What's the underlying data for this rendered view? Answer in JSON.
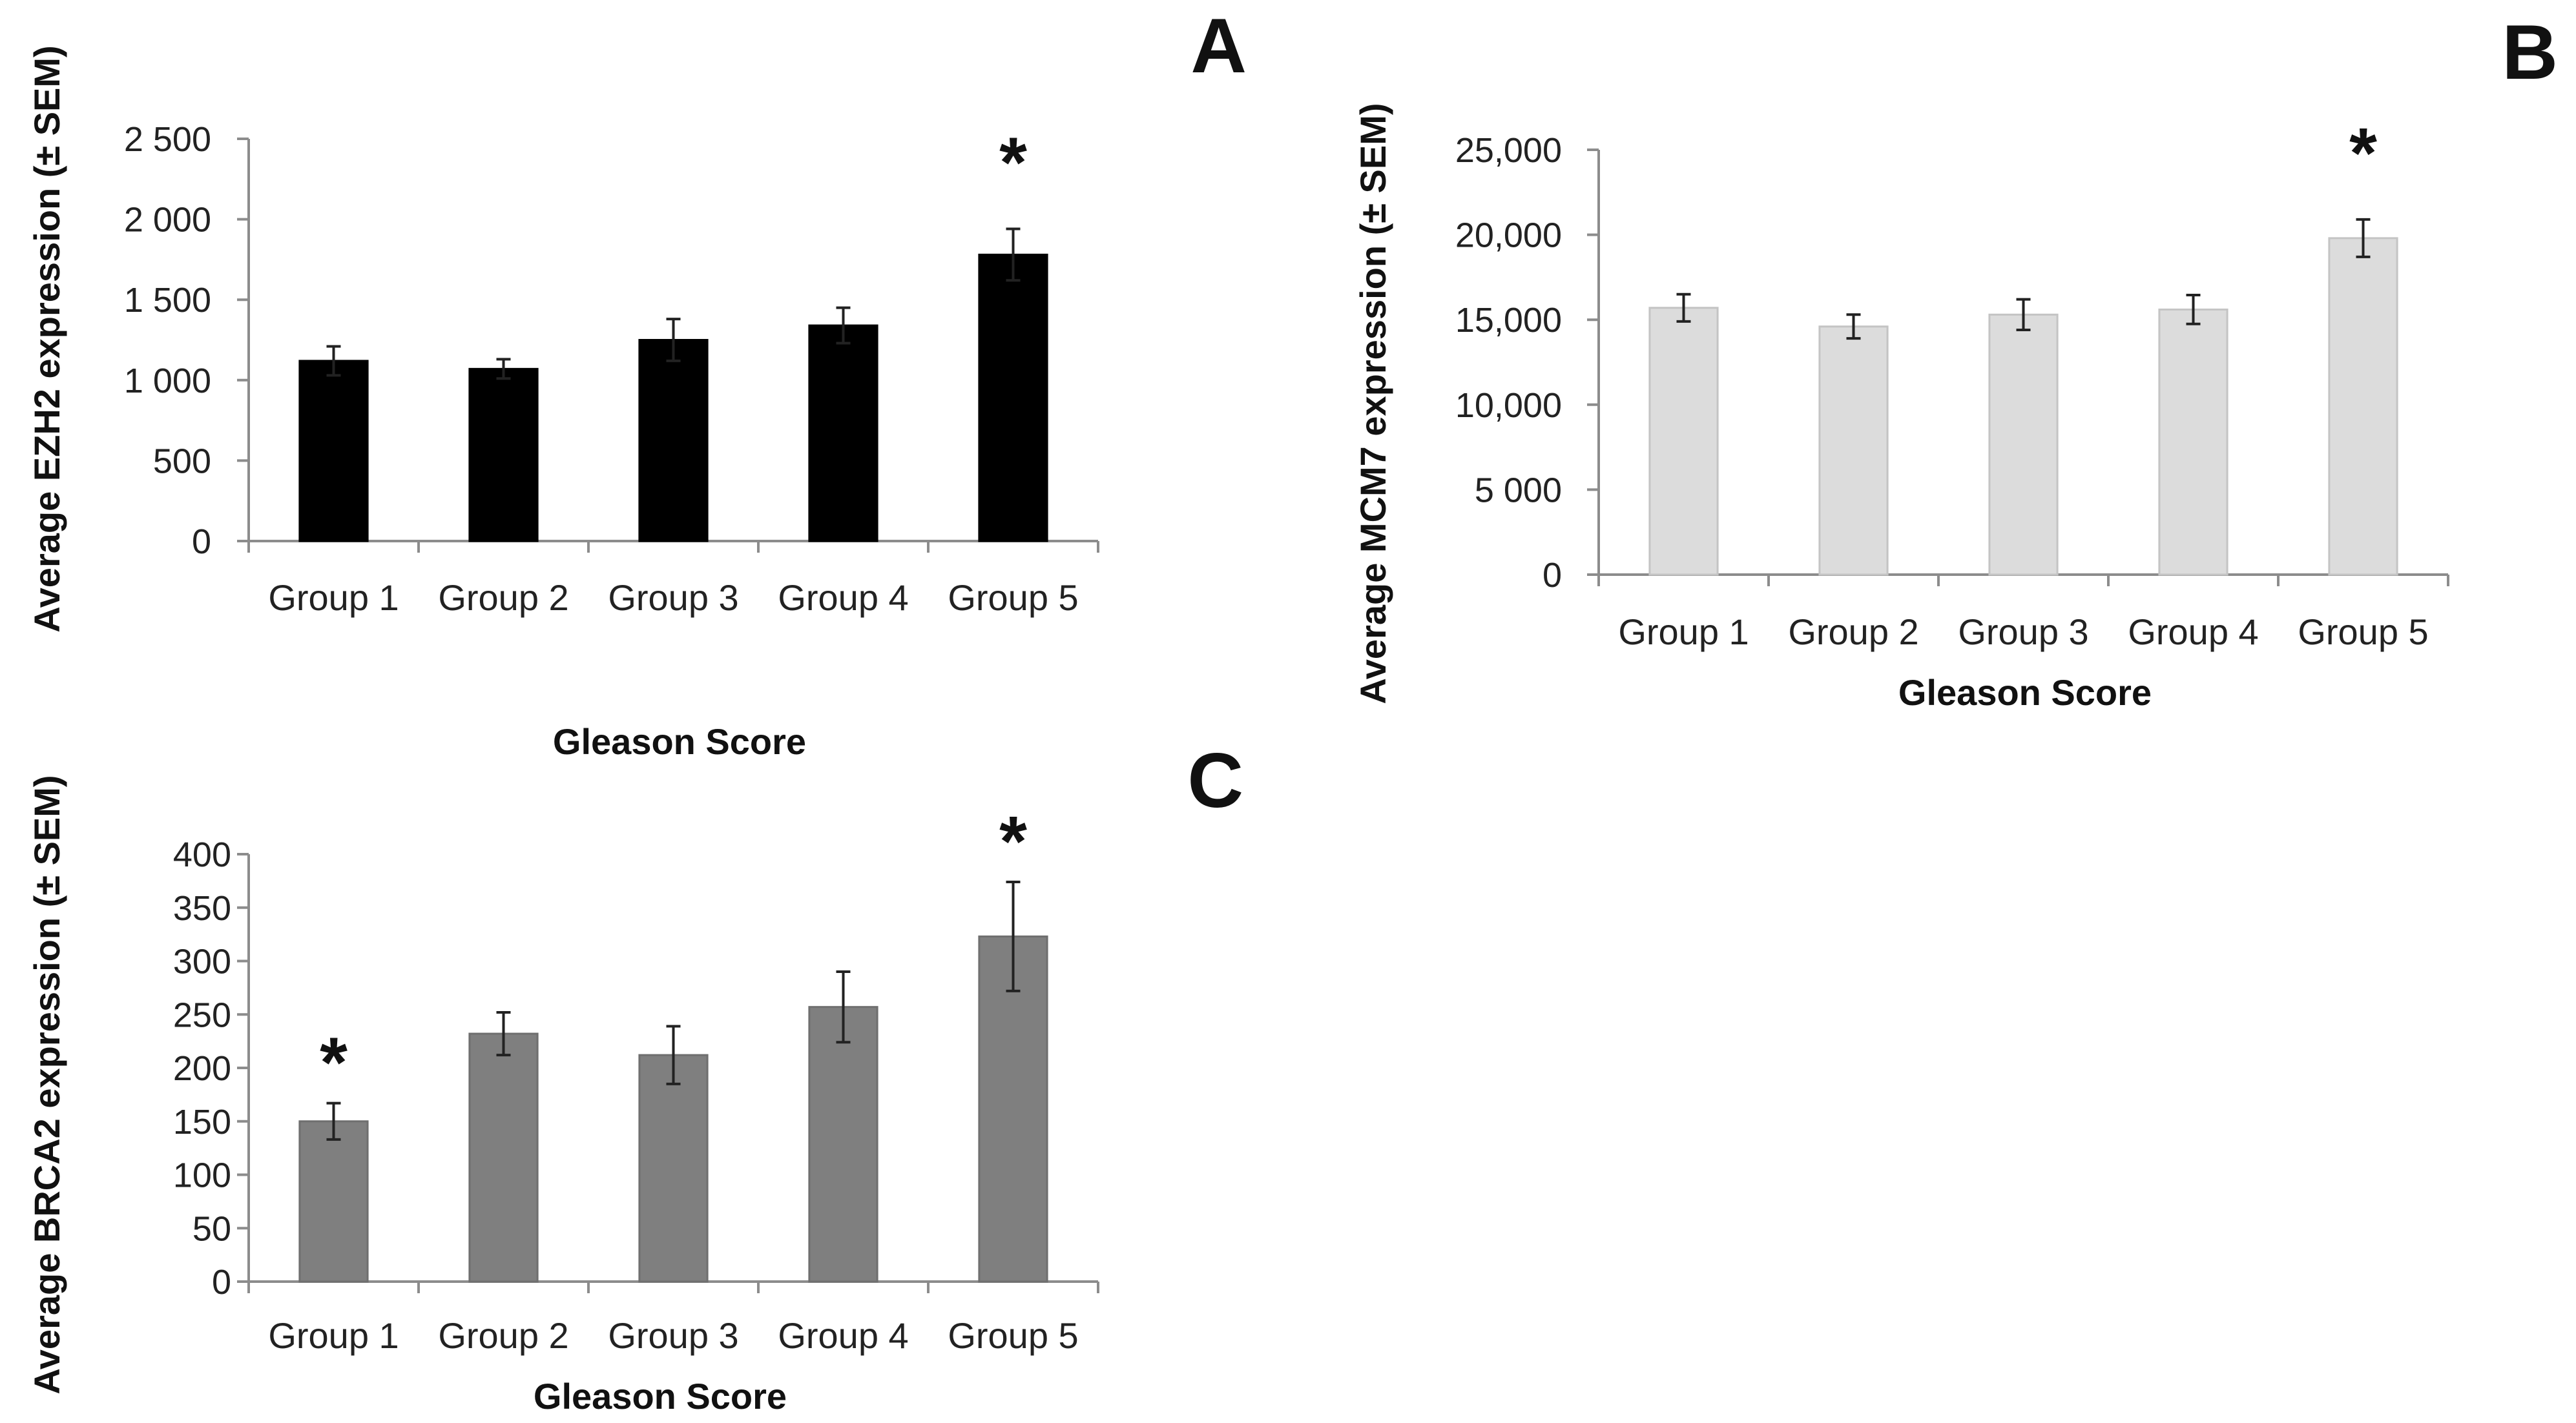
{
  "chart_data": [
    {
      "panel": "A",
      "type": "bar",
      "categories": [
        "Group 1",
        "Group 2",
        "Group 3",
        "Group 4",
        "Group 5"
      ],
      "values": [
        1120,
        1070,
        1250,
        1340,
        1780
      ],
      "errors": [
        90,
        60,
        130,
        110,
        160
      ],
      "significant": [
        "",
        "",
        "",
        "",
        "*"
      ],
      "ytick_labels": [
        "0",
        "500",
        "1 000",
        "1 500",
        "2 000",
        "2 500"
      ],
      "ylim": [
        0,
        2500
      ],
      "xlabel": "Gleason Score",
      "ylabel": "Average EZH2 expression  (± SEM)",
      "bar_color": "#000000",
      "bar_stroke": "#000000"
    },
    {
      "panel": "B",
      "type": "bar",
      "categories": [
        "Group 1",
        "Group 2",
        "Group 3",
        "Group 4",
        "Group 5"
      ],
      "values": [
        15700,
        14600,
        15300,
        15600,
        19800
      ],
      "errors": [
        800,
        700,
        900,
        850,
        1100
      ],
      "significant": [
        "",
        "",
        "",
        "",
        "*"
      ],
      "ytick_labels": [
        "0",
        "5 000",
        "10,000",
        "15,000",
        "20,000",
        "25,000"
      ],
      "ylim": [
        0,
        25000
      ],
      "xlabel": "Gleason Score",
      "ylabel": "Average MCM7 expression  (± SEM)",
      "bar_color": "#dcdcdc",
      "bar_stroke": "#c4c4c4"
    },
    {
      "panel": "C",
      "type": "bar",
      "categories": [
        "Group 1",
        "Group 2",
        "Group 3",
        "Group 4",
        "Group 5"
      ],
      "values": [
        150,
        232,
        212,
        257,
        323
      ],
      "errors": [
        17,
        20,
        27,
        33,
        51
      ],
      "significant": [
        "*",
        "",
        "",
        "",
        "*"
      ],
      "ytick_labels": [
        "0",
        "50",
        "100",
        "150",
        "200",
        "250",
        "300",
        "350",
        "400"
      ],
      "ylim": [
        0,
        400
      ],
      "xlabel": "Gleason Score",
      "ylabel": "Average BRCA2 expression  (± SEM)",
      "bar_color": "#7f7f7f",
      "bar_stroke": "#6f6f6f"
    }
  ]
}
